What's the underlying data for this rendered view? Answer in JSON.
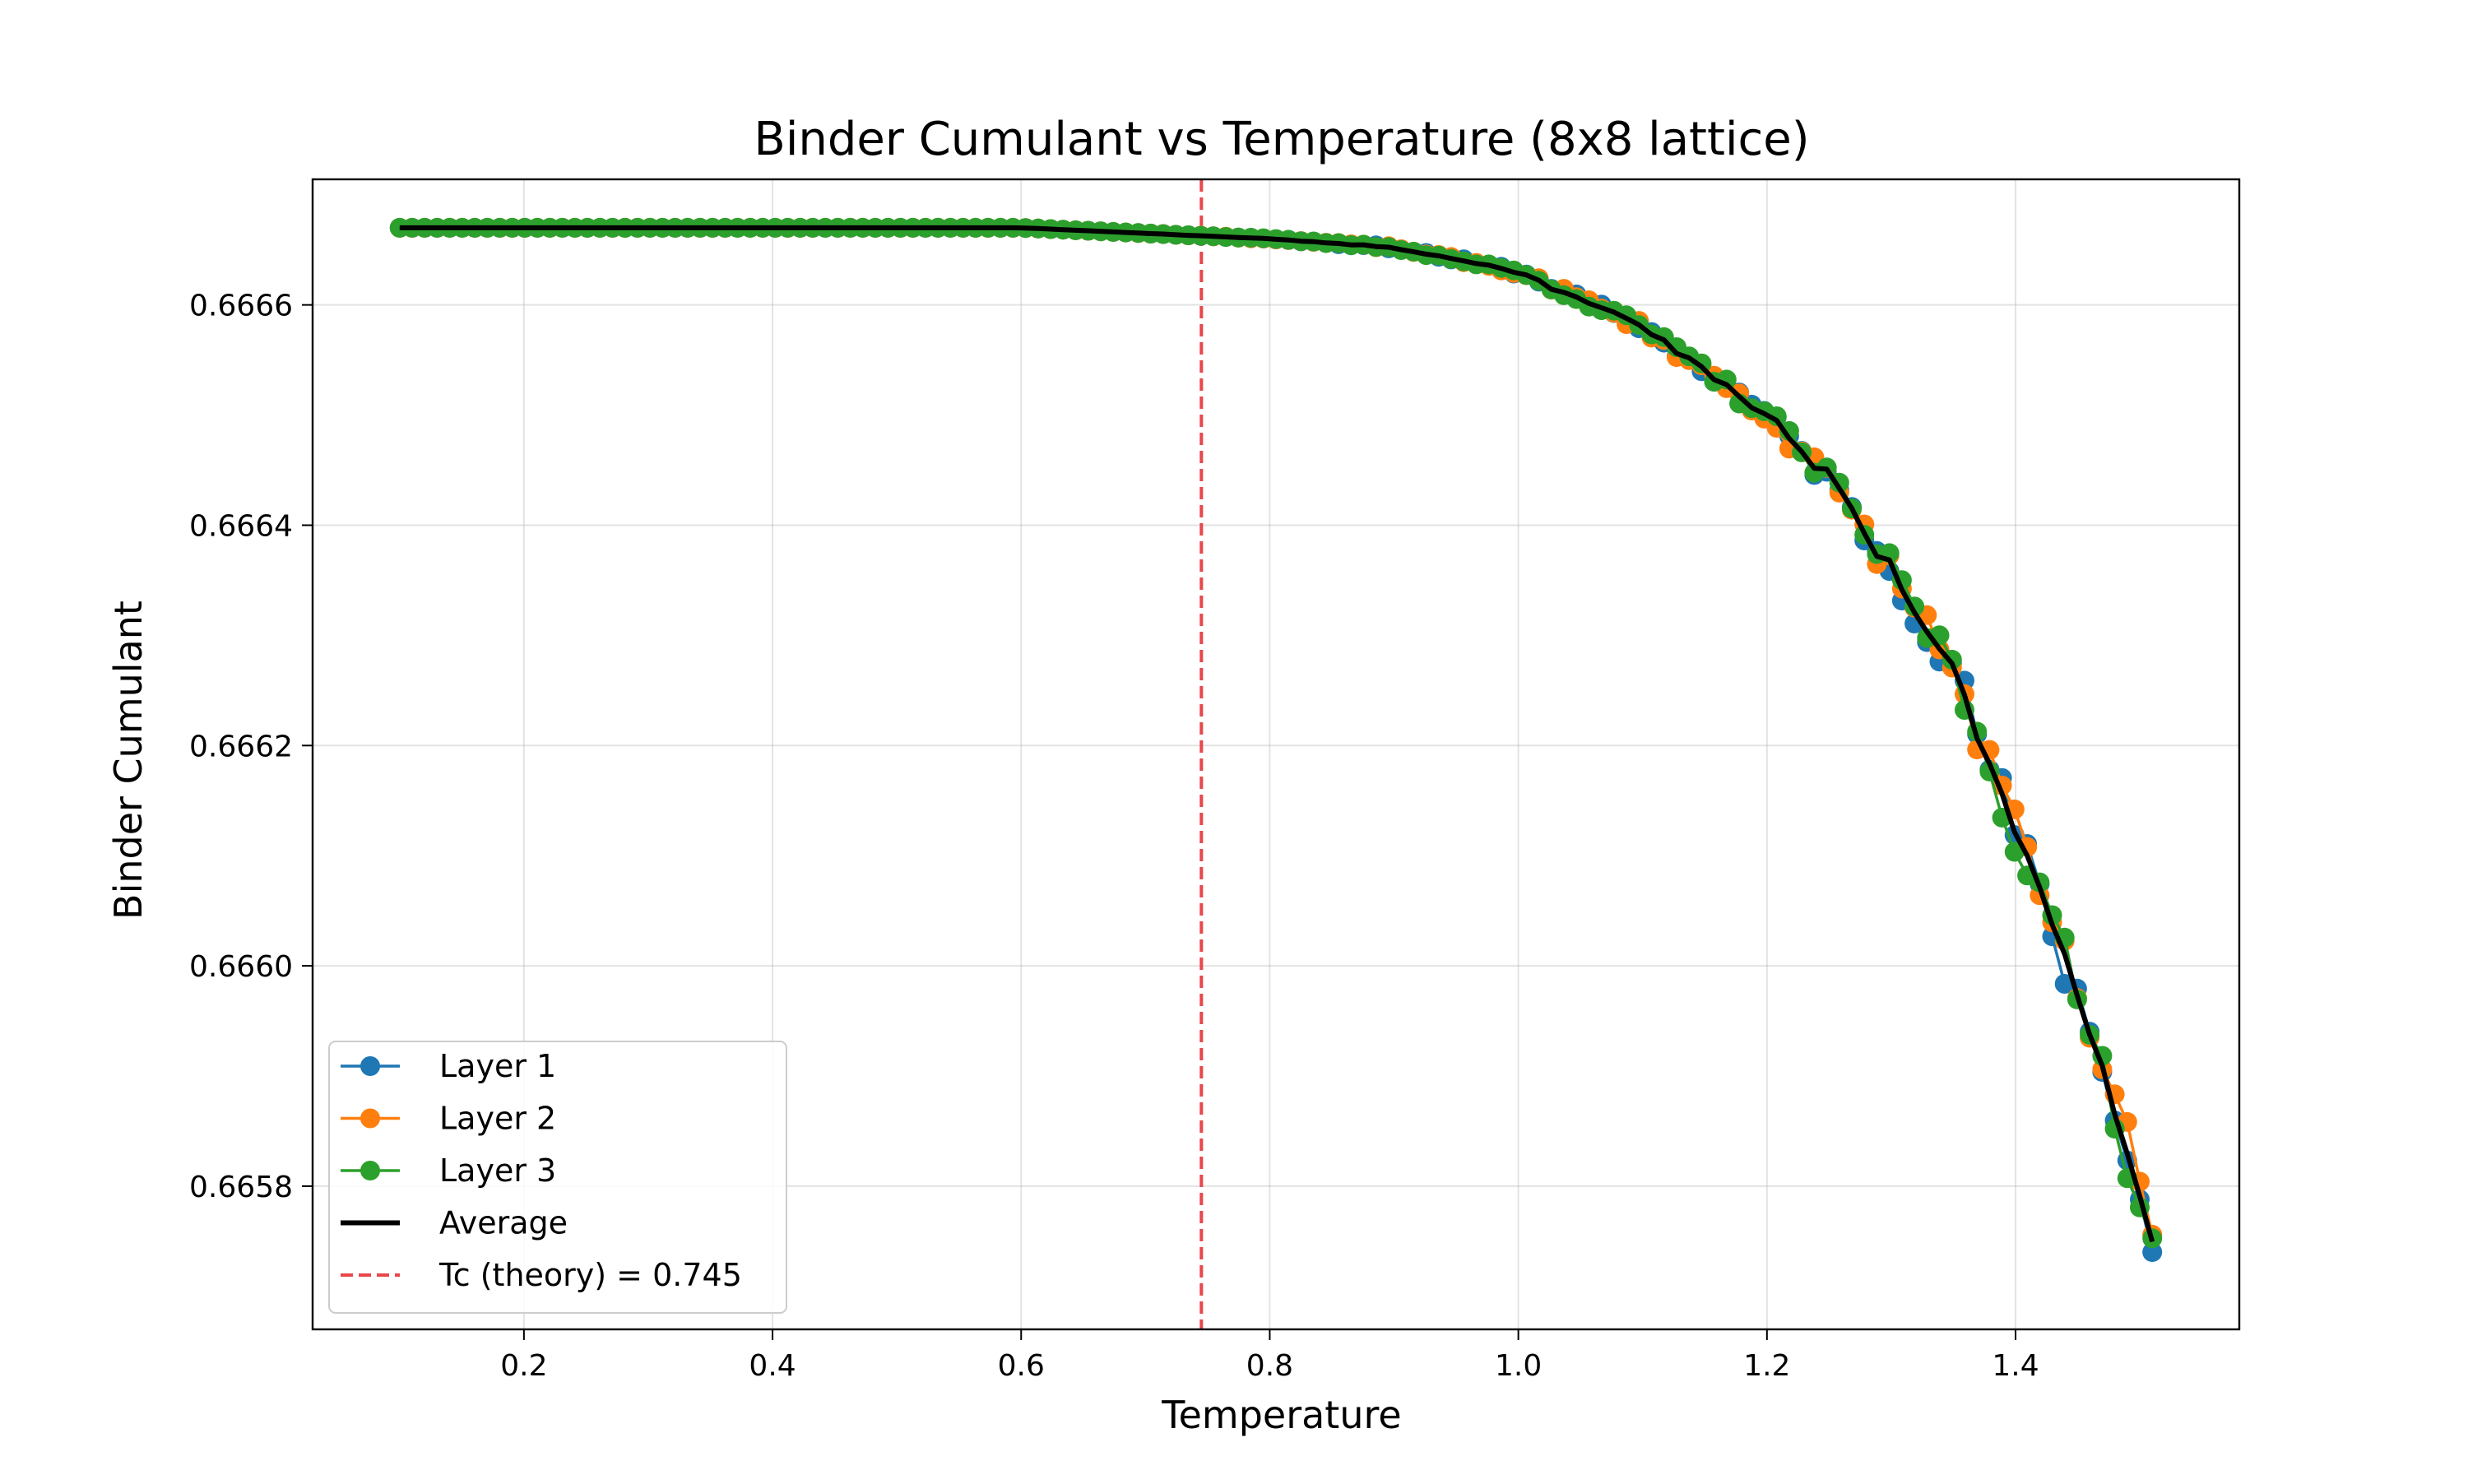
{
  "chart_data": {
    "type": "line",
    "title": "Binder Cumulant vs Temperature (8x8 lattice)",
    "xlabel": "Temperature",
    "ylabel": "Binder Cumulant",
    "xlim": [
      0.03,
      1.58
    ],
    "ylim": [
      0.66567,
      0.666714
    ],
    "xticks": [
      0.2,
      0.4,
      0.6,
      0.8,
      1.0,
      1.2,
      1.4
    ],
    "xtick_labels": [
      "0.2",
      "0.4",
      "0.6",
      "0.8",
      "1.0",
      "1.2",
      "1.4"
    ],
    "yticks": [
      0.6658,
      0.666,
      0.6662,
      0.6664,
      0.6666
    ],
    "ytick_labels": [
      "0.6658",
      "0.6660",
      "0.6662",
      "0.6664",
      "0.6666"
    ],
    "grid": true,
    "legend_position": "lower-left",
    "vline": {
      "x": 0.745,
      "label": "Tc (theory) = 0.745",
      "color": "#e8474a"
    },
    "x_range": [
      0.1,
      1.51
    ],
    "n_points": 141,
    "series": [
      {
        "name": "Layer 1",
        "color": "#1f77b4",
        "style": "line-marker",
        "seed": 11
      },
      {
        "name": "Layer 2",
        "color": "#ff7f0e",
        "style": "line-marker",
        "seed": 23
      },
      {
        "name": "Layer 3",
        "color": "#2ca02c",
        "style": "line-marker",
        "seed": 37
      },
      {
        "name": "Average",
        "color": "#000000",
        "style": "line"
      }
    ],
    "curve_keypoints": {
      "x": [
        0.1,
        0.6,
        0.7,
        0.8,
        0.9,
        1.0,
        1.1,
        1.2,
        1.25,
        1.3,
        1.35,
        1.4,
        1.45,
        1.48,
        1.51
      ],
      "y": [
        0.66667,
        0.66667,
        0.666665,
        0.66666,
        0.666652,
        0.66663,
        0.66658,
        0.6665,
        0.66644,
        0.66636,
        0.66627,
        0.66612,
        0.66597,
        0.66588,
        0.66574
      ]
    }
  }
}
